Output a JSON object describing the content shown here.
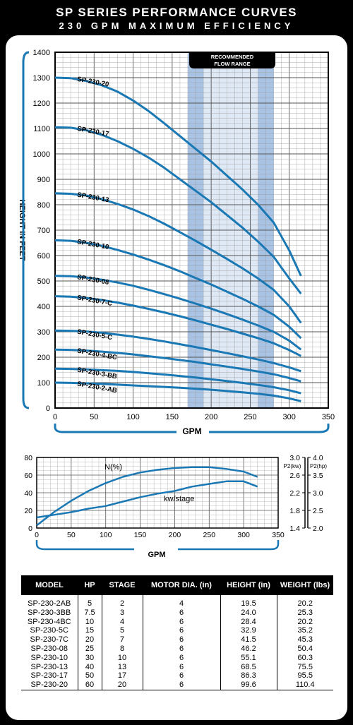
{
  "header": {
    "title": "SP SERIES PERFORMANCE CURVES",
    "subtitle": "230 GPM MAXIMUM EFFICIENCY"
  },
  "colors": {
    "curve": "#1a78b4",
    "band": "#a9c3e4",
    "grid": "#888888",
    "accent": "#1a78b4",
    "background": "#000000"
  },
  "chart_data": [
    {
      "type": "line",
      "title": "",
      "xlabel": "GPM",
      "ylabel": "HEIGHT IN FEET",
      "xlim": [
        0,
        350
      ],
      "ylim": [
        0,
        1400
      ],
      "xticks": [
        "0",
        "50",
        "100",
        "150",
        "200",
        "250",
        "300",
        "350"
      ],
      "yticks": [
        "0",
        "100",
        "200",
        "300",
        "400",
        "500",
        "600",
        "700",
        "800",
        "900",
        "1000",
        "1100",
        "1200",
        "1300",
        "1400"
      ],
      "grid": true,
      "annotation": {
        "label": "RECOMMENDED FLOW RANGE",
        "range": [
          170,
          280
        ]
      },
      "series": [
        {
          "name": "SP-230-20",
          "x": [
            0,
            20,
            40,
            60,
            80,
            100,
            120,
            140,
            160,
            180,
            200,
            220,
            240,
            260,
            280,
            300,
            315
          ],
          "y": [
            1300,
            1298,
            1287,
            1270,
            1245,
            1210,
            1168,
            1120,
            1070,
            1020,
            970,
            915,
            860,
            800,
            730,
            620,
            520
          ]
        },
        {
          "name": "SP-230-17",
          "x": [
            0,
            20,
            40,
            60,
            80,
            100,
            120,
            140,
            160,
            180,
            200,
            220,
            240,
            260,
            280,
            300,
            315
          ],
          "y": [
            1105,
            1103,
            1093,
            1075,
            1050,
            1020,
            985,
            945,
            900,
            855,
            810,
            760,
            710,
            655,
            595,
            510,
            450
          ]
        },
        {
          "name": "SP-230-13",
          "x": [
            0,
            20,
            40,
            60,
            80,
            100,
            120,
            140,
            160,
            180,
            200,
            220,
            240,
            260,
            280,
            300,
            315
          ],
          "y": [
            845,
            843,
            836,
            822,
            803,
            781,
            755,
            725,
            692,
            658,
            623,
            587,
            550,
            510,
            465,
            400,
            335
          ]
        },
        {
          "name": "SP-230-10",
          "x": [
            0,
            20,
            40,
            60,
            80,
            100,
            120,
            140,
            160,
            180,
            200,
            220,
            240,
            260,
            280,
            300,
            315
          ],
          "y": [
            660,
            658,
            650,
            638,
            622,
            604,
            584,
            562,
            538,
            512,
            486,
            458,
            430,
            400,
            367,
            320,
            275
          ]
        },
        {
          "name": "SP-230-08",
          "x": [
            0,
            20,
            40,
            60,
            80,
            100,
            120,
            140,
            160,
            180,
            200,
            220,
            240,
            260,
            280,
            300,
            315
          ],
          "y": [
            520,
            519,
            514,
            505,
            494,
            481,
            465,
            448,
            430,
            411,
            391,
            370,
            348,
            325,
            300,
            265,
            230
          ]
        },
        {
          "name": "SP-230-7-C",
          "x": [
            0,
            20,
            40,
            60,
            80,
            100,
            120,
            140,
            160,
            180,
            200,
            220,
            240,
            260,
            280,
            300,
            315
          ],
          "y": [
            440,
            438,
            433,
            425,
            415,
            403,
            390,
            376,
            361,
            345,
            328,
            311,
            293,
            275,
            255,
            228,
            205
          ]
        },
        {
          "name": "SP-230-5-C",
          "x": [
            0,
            20,
            40,
            60,
            80,
            100,
            120,
            140,
            160,
            180,
            200,
            220,
            240,
            260,
            280,
            300,
            315
          ],
          "y": [
            305,
            304,
            301,
            296,
            289,
            281,
            272,
            262,
            251,
            240,
            228,
            216,
            204,
            191,
            177,
            160,
            145
          ]
        },
        {
          "name": "SP-230-4-BC",
          "x": [
            0,
            20,
            40,
            60,
            80,
            100,
            120,
            140,
            160,
            180,
            200,
            220,
            240,
            260,
            280,
            300,
            315
          ],
          "y": [
            230,
            229,
            226,
            222,
            217,
            211,
            204,
            197,
            189,
            181,
            172,
            163,
            154,
            144,
            133,
            118,
            105
          ]
        },
        {
          "name": "SP-230-3-BB",
          "x": [
            0,
            20,
            40,
            60,
            80,
            100,
            120,
            140,
            160,
            180,
            200,
            220,
            240,
            260,
            280,
            300,
            315
          ],
          "y": [
            155,
            154,
            152,
            149,
            146,
            142,
            137,
            132,
            126,
            120,
            113,
            106,
            99,
            91,
            82,
            70,
            58
          ]
        },
        {
          "name": "SP-230-2-AB",
          "x": [
            0,
            20,
            40,
            60,
            80,
            100,
            120,
            140,
            160,
            180,
            200,
            220,
            240,
            260,
            280,
            300,
            315
          ],
          "y": [
            100,
            99,
            97,
            95,
            92,
            89,
            86,
            83,
            80,
            76,
            72,
            67,
            62,
            56,
            49,
            38,
            27
          ]
        }
      ]
    },
    {
      "type": "line",
      "title": "",
      "xlabel": "GPM",
      "ylabel": "",
      "xlim": [
        0,
        350
      ],
      "ylim": [
        0,
        80
      ],
      "xticks": [
        "0",
        "50",
        "100",
        "150",
        "200",
        "250",
        "300",
        "350"
      ],
      "yticks": [
        "0",
        "20",
        "40",
        "60",
        "80"
      ],
      "right_axis_kw": {
        "label": "P2(kw)",
        "ticks": [
          "1.4",
          "1.8",
          "2.2",
          "2.6",
          "3.0"
        ]
      },
      "right_axis_hp": {
        "label": "P2(hp)",
        "ticks": [
          "2.0",
          "2.5",
          "3.0",
          "3.5",
          "4.0"
        ]
      },
      "grid": true,
      "series": [
        {
          "name": "N(%)",
          "x": [
            0,
            25,
            50,
            75,
            100,
            125,
            150,
            175,
            200,
            225,
            250,
            275,
            300,
            320
          ],
          "y": [
            3,
            18,
            31,
            42,
            51,
            58,
            63,
            66,
            68,
            69,
            69,
            67,
            64,
            58
          ]
        },
        {
          "name": "kw/stage",
          "x": [
            0,
            25,
            50,
            75,
            100,
            125,
            150,
            175,
            200,
            225,
            250,
            275,
            300,
            320
          ],
          "y": [
            12,
            15,
            18,
            22,
            25,
            30,
            35,
            39,
            42,
            47,
            50,
            53,
            53,
            47
          ]
        }
      ]
    }
  ],
  "table": {
    "headers": [
      "MODEL",
      "HP",
      "STAGE",
      "MOTOR DIA. (in)",
      "HEIGHT (in)",
      "WEIGHT (lbs)"
    ],
    "rows": [
      [
        "SP-230-2AB",
        "5",
        "2",
        "4",
        "19.5",
        "20.2"
      ],
      [
        "SP-230-3BB",
        "7.5",
        "3",
        "6",
        "24.0",
        "25.3"
      ],
      [
        "SP-230-4BC",
        "10",
        "4",
        "6",
        "28.4",
        "20.2"
      ],
      [
        "SP-230-5C",
        "15",
        "5",
        "6",
        "32.9",
        "35.2"
      ],
      [
        "SP-230-7C",
        "20",
        "7",
        "6",
        "41.5",
        "45.3"
      ],
      [
        "SP-230-08",
        "25",
        "8",
        "6",
        "46.2",
        "50.4"
      ],
      [
        "SP-230-10",
        "30",
        "10",
        "6",
        "55.1",
        "60.3"
      ],
      [
        "SP-230-13",
        "40",
        "13",
        "6",
        "68.5",
        "75.5"
      ],
      [
        "SP-230-17",
        "50",
        "17",
        "6",
        "86.3",
        "95.5"
      ],
      [
        "SP-230-20",
        "60",
        "20",
        "6",
        "99.6",
        "110.4"
      ]
    ]
  }
}
